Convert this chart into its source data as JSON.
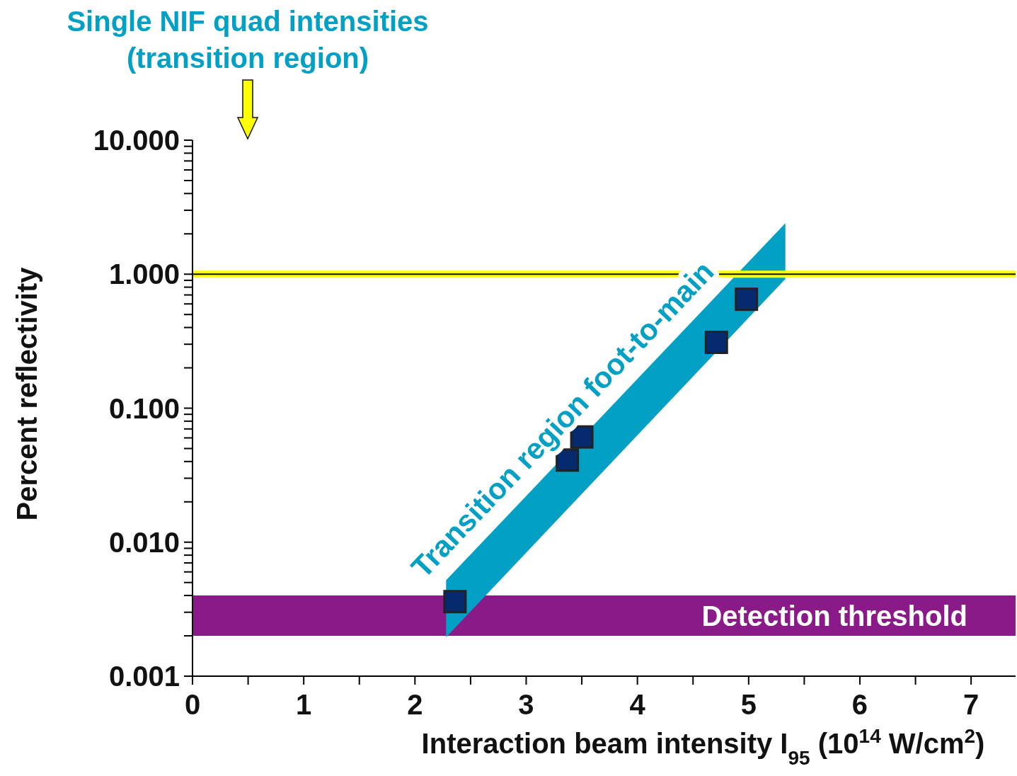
{
  "chart_data": {
    "type": "scatter",
    "xlabel": "Interaction beam intensity I$_{95}$ (10$^{14}$ W/cm$^{2}$)",
    "ylabel": "Percent reflectivity",
    "annotations": [
      "Single NIF quad intensities\n(transition region)"
    ],
    "series": [
      {
        "type": "line",
        "name": "Transition region foot-to-main",
        "color": "#03a0c6",
        "x": [
          2.28,
          5.33
        ],
        "values": [
          null,
          null
        ],
        "lower": [
          0.00195,
          0.92
        ],
        "upper": [
          0.0052,
          2.4
        ]
      },
      {
        "color": "#062a6e",
        "x": [
          2.36,
          3.37,
          3.5,
          4.71,
          4.98
        ],
        "values": [
          0.0036,
          0.041,
          0.061,
          0.31,
          0.65
        ]
      }
    ],
    "marker": "square",
    "log": "y",
    "xlim": [
      0,
      7.4
    ],
    "xticks": [
      0,
      {
        "value": 0.5,
        "label": null
      },
      1,
      {
        "value": 1.5,
        "label": null
      },
      2,
      {
        "value": 2.5,
        "label": null
      },
      3,
      {
        "value": 3.5,
        "label": null
      },
      4,
      {
        "value": 4.5,
        "label": null
      },
      5,
      {
        "value": 5.5,
        "label": null
      },
      6,
      {
        "value": 6.5,
        "label": null
      },
      7
    ],
    "ylim": [
      0.001,
      10
    ],
    "yticks": [
      {
        "value": 0.001,
        "label": "0.001"
      },
      {
        "value": 0.002,
        "label": null
      },
      {
        "value": 0.003,
        "label": null
      },
      {
        "value": 0.004,
        "label": null
      },
      {
        "value": 0.005,
        "label": null
      },
      {
        "value": 0.006,
        "label": null
      },
      {
        "value": 0.007,
        "label": null
      },
      {
        "value": 0.008,
        "label": null
      },
      {
        "value": 0.009,
        "label": null
      },
      {
        "value": 0.01,
        "label": "0.010"
      },
      {
        "value": 0.02,
        "label": null
      },
      {
        "value": 0.03,
        "label": null
      },
      {
        "value": 0.04,
        "label": null
      },
      {
        "value": 0.05,
        "label": null
      },
      {
        "value": 0.06,
        "label": null
      },
      {
        "value": 0.07,
        "label": null
      },
      {
        "value": 0.08,
        "label": null
      },
      {
        "value": 0.09,
        "label": null
      },
      {
        "value": 0.1,
        "label": "0.100"
      },
      {
        "value": 0.2,
        "label": null
      },
      {
        "value": 0.3,
        "label": null
      },
      {
        "value": 0.4,
        "label": null
      },
      {
        "value": 0.5,
        "label": null
      },
      {
        "value": 0.6,
        "label": null
      },
      {
        "value": 0.7,
        "label": null
      },
      {
        "value": 0.8,
        "label": null
      },
      {
        "value": 0.9,
        "label": null
      },
      {
        "value": 1,
        "label": "1.000"
      },
      {
        "value": 2,
        "label": null
      },
      {
        "value": 3,
        "label": null
      },
      {
        "value": 4,
        "label": null
      },
      {
        "value": 5,
        "label": null
      },
      {
        "value": 6,
        "label": null
      },
      {
        "value": 7,
        "label": null
      },
      {
        "value": 8,
        "label": null
      },
      {
        "value": 9,
        "label": null
      },
      {
        "value": 10,
        "label": "10.000"
      }
    ],
    "ref_lines": [
      {
        "axis": "y",
        "value": 1,
        "color": "#ffff00"
      },
      {
        "axis": "y",
        "value": 1,
        "color": "#111111"
      }
    ],
    "bands": [
      {
        "axis": "y",
        "from": 0.002,
        "to": 0.004,
        "label": "Detection threshold",
        "color": "#8b1a89"
      }
    ],
    "grid": false,
    "legend": false
  }
}
